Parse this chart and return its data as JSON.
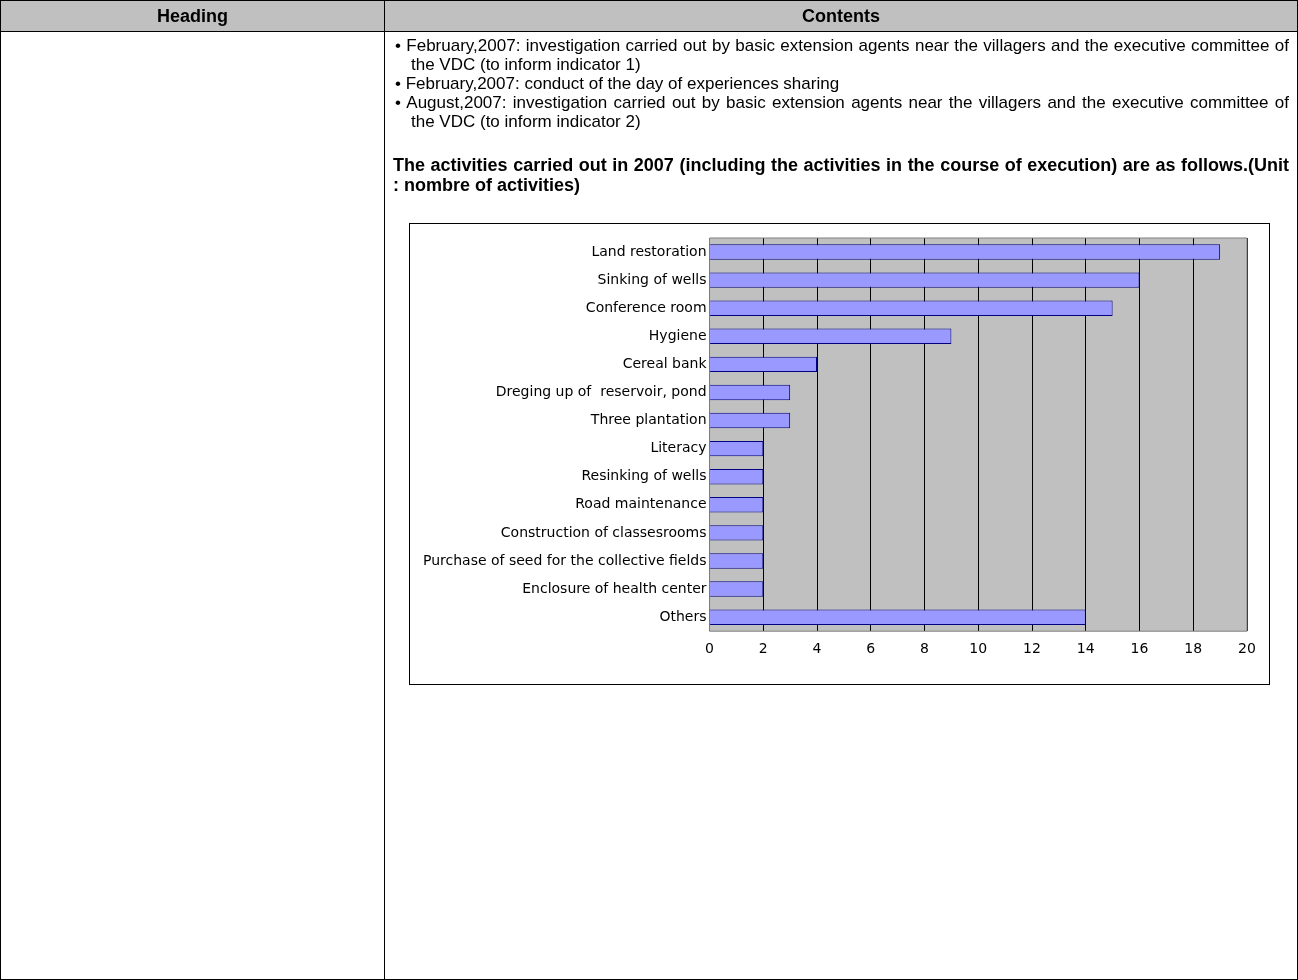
{
  "chart_data": {
    "type": "bar",
    "orientation": "horizontal",
    "title": "The activities carried out in 2007 (including the activities in the course of execution) are as follows.(Unit  : nombre of activities)",
    "annotations": [
      "Heading",
      "Contents",
      "• February,2007: investigation carried out by basic extension agents near the villagers and the executive committee of the VDC (to inform indicator 1)",
      "• February,2007: conduct of the day of experiences sharing",
      "• August,2007: investigation carried out by basic extension agents near the villagers and the executive committee of the VDC (to inform indicator 2)"
    ],
    "categories": [
      "Land restoration",
      "Sinking of wells",
      "Conference room",
      "Hygiene",
      "Cereal bank",
      "Dreging up of  reservoir, pond",
      "Three plantation",
      "Literacy",
      "Resinking of wells",
      "Road maintenance",
      "Construction of classesrooms",
      "Purchase of seed for the collective fields",
      "Enclosure of health center",
      "Others"
    ],
    "values": [
      19,
      16,
      15,
      9,
      4,
      3,
      3,
      2,
      2,
      2,
      2,
      2,
      2,
      14
    ],
    "color": "#9999ff",
    "xlim": [
      0,
      20
    ],
    "xticks": [
      0,
      2,
      4,
      6,
      8,
      10,
      12,
      14,
      16,
      18,
      20
    ],
    "grid": "x",
    "legend": false
  }
}
